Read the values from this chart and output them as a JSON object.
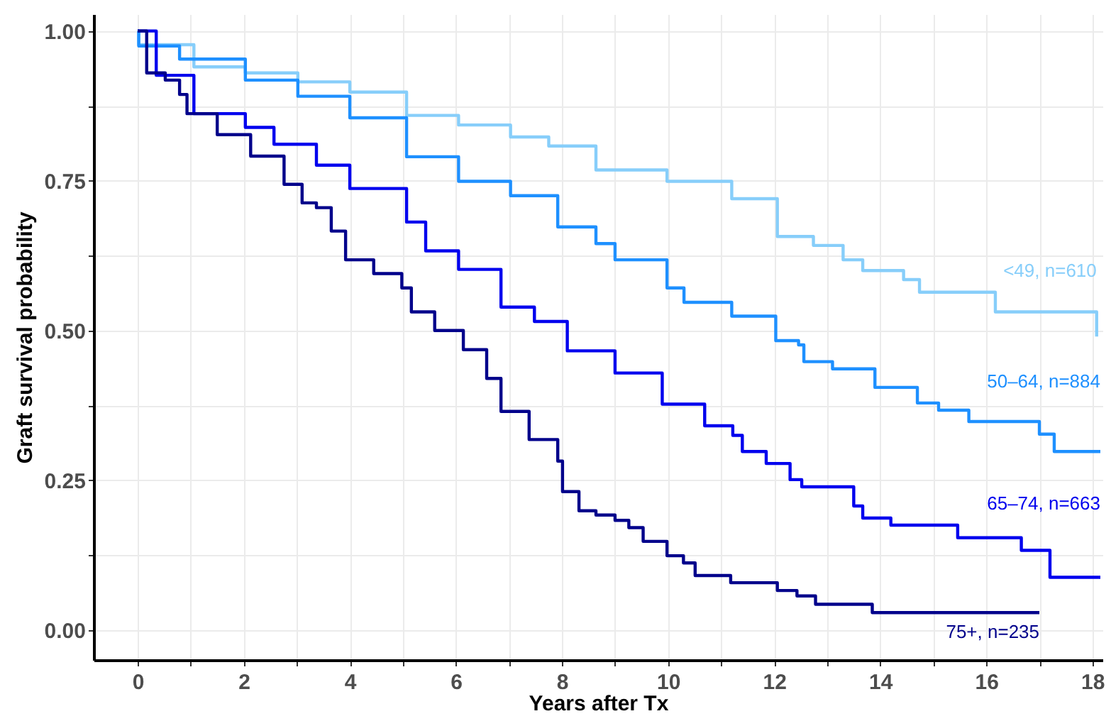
{
  "chart_data": {
    "type": "step",
    "xlabel": "Years after Tx",
    "ylabel": "Graft survival probability",
    "xlim": [
      -0.83,
      18.19
    ],
    "ylim": [
      -0.05,
      1.028
    ],
    "xticks": [
      0,
      {
        "value": 1,
        "label": null
      },
      2,
      {
        "value": 3,
        "label": null
      },
      4,
      {
        "value": 5,
        "label": null
      },
      6,
      {
        "value": 7,
        "label": null
      },
      8,
      {
        "value": 9,
        "label": null
      },
      10,
      {
        "value": 11,
        "label": null
      },
      12,
      {
        "value": 13,
        "label": null
      },
      14,
      {
        "value": 15,
        "label": null
      },
      16,
      {
        "value": 17,
        "label": null
      },
      18
    ],
    "yticks": [
      {
        "value": 0,
        "label": "0.00"
      },
      {
        "value": 0.125,
        "label": null
      },
      {
        "value": 0.25,
        "label": "0.25"
      },
      {
        "value": 0.375,
        "label": null
      },
      {
        "value": 0.5,
        "label": "0.50"
      },
      {
        "value": 0.625,
        "label": null
      },
      {
        "value": 0.75,
        "label": "0.75"
      },
      {
        "value": 0.875,
        "label": null
      },
      {
        "value": 1,
        "label": "1.00"
      }
    ],
    "grid": true,
    "legend": false,
    "marker": "none",
    "line_style": "solid",
    "series": [
      {
        "name": "<49, n=610",
        "color": "#87cefa",
        "x": [
          0,
          0.02,
          1.06,
          2.03,
          3.02,
          4.0,
          5.07,
          6.05,
          7.03,
          7.75,
          8.64,
          9.0,
          9.98,
          11.2,
          12.06,
          12.74,
          13.3,
          13.67,
          14.44,
          14.74,
          16.17,
          18.08
        ],
        "values": [
          1.0,
          0.977,
          0.94,
          0.93,
          0.915,
          0.898,
          0.859,
          0.843,
          0.823,
          0.808,
          0.768,
          0.768,
          0.749,
          0.72,
          0.657,
          0.642,
          0.618,
          0.6,
          0.585,
          0.564,
          0.531,
          0.49
        ]
      },
      {
        "name": "50–64, n=884",
        "color": "#1e90ff",
        "x": [
          0,
          0.02,
          0.79,
          2.03,
          3.02,
          4.0,
          5.07,
          6.05,
          7.03,
          7.92,
          8.64,
          9.0,
          9.98,
          10.3,
          11.2,
          12.03,
          12.46,
          12.56,
          13.1,
          13.9,
          14.7,
          15.1,
          15.67,
          16.8,
          17.0,
          17.28,
          18.15
        ],
        "values": [
          1.0,
          0.975,
          0.953,
          0.918,
          0.891,
          0.855,
          0.79,
          0.749,
          0.725,
          0.673,
          0.645,
          0.618,
          0.571,
          0.547,
          0.524,
          0.483,
          0.476,
          0.448,
          0.436,
          0.405,
          0.379,
          0.367,
          0.348,
          0.348,
          0.327,
          0.298,
          0.298
        ]
      },
      {
        "name": "65–74, n=663",
        "color": "#0000ee",
        "x": [
          0,
          0.35,
          1.06,
          2.03,
          2.57,
          3.37,
          4.0,
          5.07,
          5.43,
          6.05,
          6.85,
          7.48,
          8.1,
          9.0,
          9.89,
          10.69,
          11.22,
          11.4,
          11.85,
          12.3,
          12.52,
          13.5,
          13.67,
          14.2,
          15.46,
          16.66,
          17.2,
          18.15
        ],
        "values": [
          1.0,
          0.926,
          0.862,
          0.839,
          0.811,
          0.776,
          0.737,
          0.681,
          0.633,
          0.602,
          0.539,
          0.515,
          0.466,
          0.429,
          0.377,
          0.341,
          0.325,
          0.298,
          0.278,
          0.251,
          0.239,
          0.207,
          0.187,
          0.175,
          0.154,
          0.133,
          0.088,
          0.088
        ]
      },
      {
        "name": "75+, n=235",
        "color": "#00008b",
        "x": [
          0,
          0.17,
          0.52,
          0.79,
          0.93,
          1.5,
          2.13,
          2.76,
          3.1,
          3.37,
          3.65,
          3.92,
          4.45,
          4.98,
          5.16,
          5.6,
          6.14,
          6.58,
          6.85,
          7.38,
          7.92,
          8.01,
          8.32,
          8.64,
          9.0,
          9.26,
          9.53,
          9.98,
          10.29,
          10.51,
          11.18,
          12.06,
          12.43,
          12.78,
          13.85,
          17.0
        ],
        "values": [
          1.0,
          0.93,
          0.918,
          0.894,
          0.862,
          0.827,
          0.791,
          0.744,
          0.713,
          0.705,
          0.666,
          0.618,
          0.595,
          0.571,
          0.531,
          0.5,
          0.468,
          0.42,
          0.365,
          0.318,
          0.282,
          0.231,
          0.199,
          0.192,
          0.183,
          0.171,
          0.148,
          0.124,
          0.112,
          0.091,
          0.079,
          0.066,
          0.057,
          0.043,
          0.029,
          0.029
        ]
      }
    ]
  }
}
